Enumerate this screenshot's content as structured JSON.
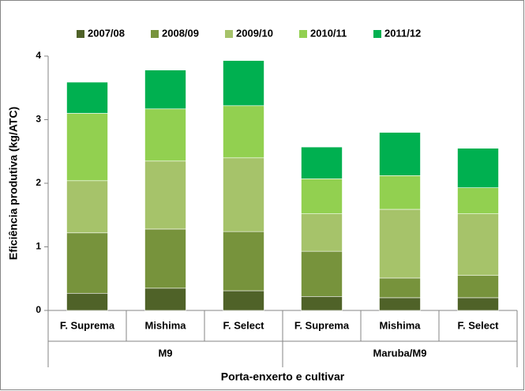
{
  "chart_data": {
    "type": "stacked_bar",
    "ylabel": "Eficiência produtiva (kg/ATC)",
    "xlabel": "Porta-enxerto e cultivar",
    "categories": [
      "F. Suprema",
      "Mishima",
      "F. Select",
      "F. Suprema",
      "Mishima",
      "F. Select"
    ],
    "groups": [
      "M9",
      "Maruba/M9"
    ],
    "series": [
      {
        "name": "2007/08",
        "color": "#4f6228",
        "values": [
          0.27,
          0.35,
          0.31,
          0.22,
          0.2,
          0.2
        ]
      },
      {
        "name": "2008/09",
        "color": "#77933c",
        "values": [
          0.95,
          0.93,
          0.93,
          0.71,
          0.31,
          0.35
        ]
      },
      {
        "name": "2009/10",
        "color": "#a6c36a",
        "values": [
          0.82,
          1.07,
          1.16,
          0.59,
          1.08,
          0.97
        ]
      },
      {
        "name": "2010/11",
        "color": "#92d050",
        "values": [
          1.06,
          0.82,
          0.82,
          0.55,
          0.53,
          0.41
        ]
      },
      {
        "name": "2011/12",
        "color": "#00b050",
        "values": [
          0.49,
          0.61,
          0.71,
          0.5,
          0.68,
          0.62
        ]
      }
    ],
    "ylim": [
      0,
      4
    ],
    "yticks": [
      0,
      1,
      2,
      3,
      4
    ],
    "grid": false,
    "legend": "top"
  }
}
